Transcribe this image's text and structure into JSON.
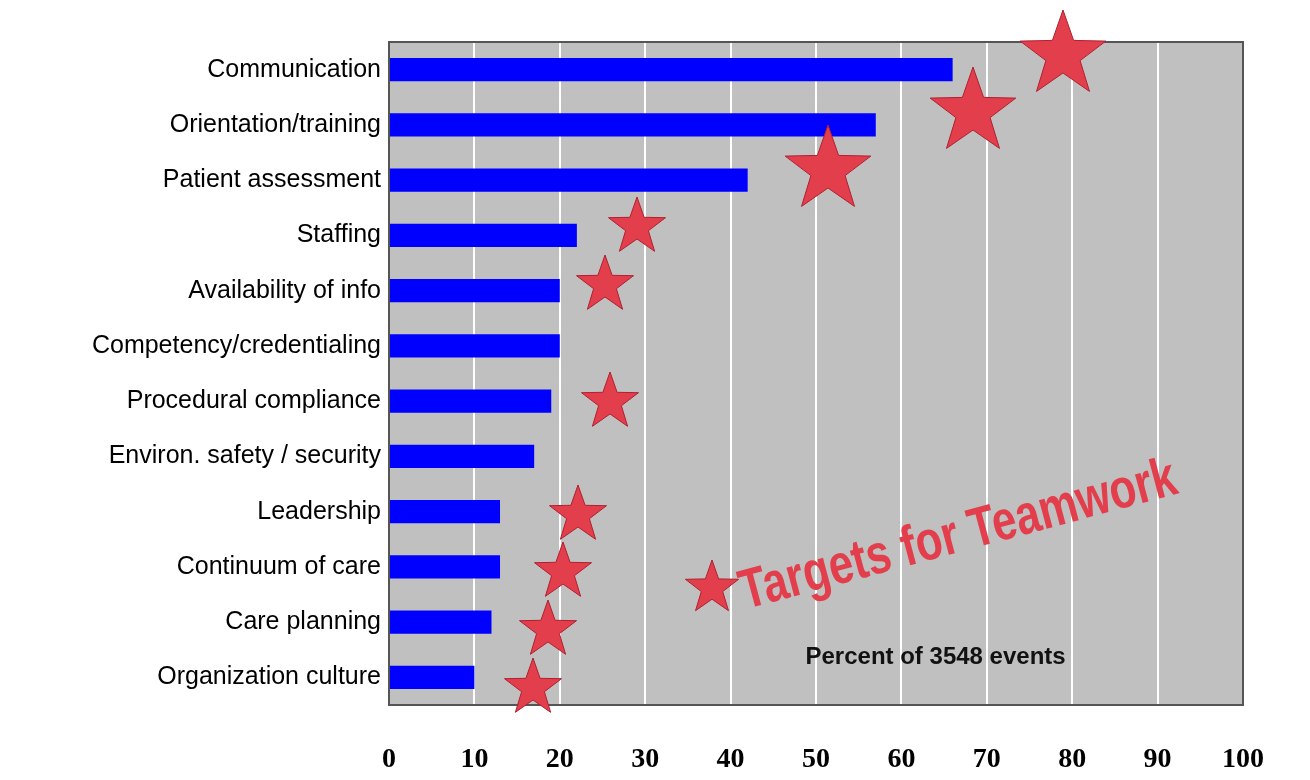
{
  "chart_data": {
    "type": "bar",
    "orientation": "horizontal",
    "categories": [
      "Communication",
      "Orientation/training",
      "Patient assessment",
      "Staffing",
      "Availability of info",
      "Competency/credentialing",
      "Procedural compliance",
      "Environ. safety / security",
      "Leadership",
      "Continuum of care",
      "Care planning",
      "Organization culture"
    ],
    "values": [
      66,
      57,
      42,
      22,
      20,
      20,
      19,
      17,
      13,
      13,
      12,
      10
    ],
    "color": "#0000ff",
    "xlabel": "Percent of 3548 events",
    "xlim": [
      0,
      100
    ],
    "xticks": [
      0,
      10,
      20,
      30,
      40,
      50,
      60,
      70,
      80,
      90,
      100
    ],
    "grid": "x",
    "legend": false,
    "annotations": [
      "Targets for Teamwork"
    ]
  }
}
